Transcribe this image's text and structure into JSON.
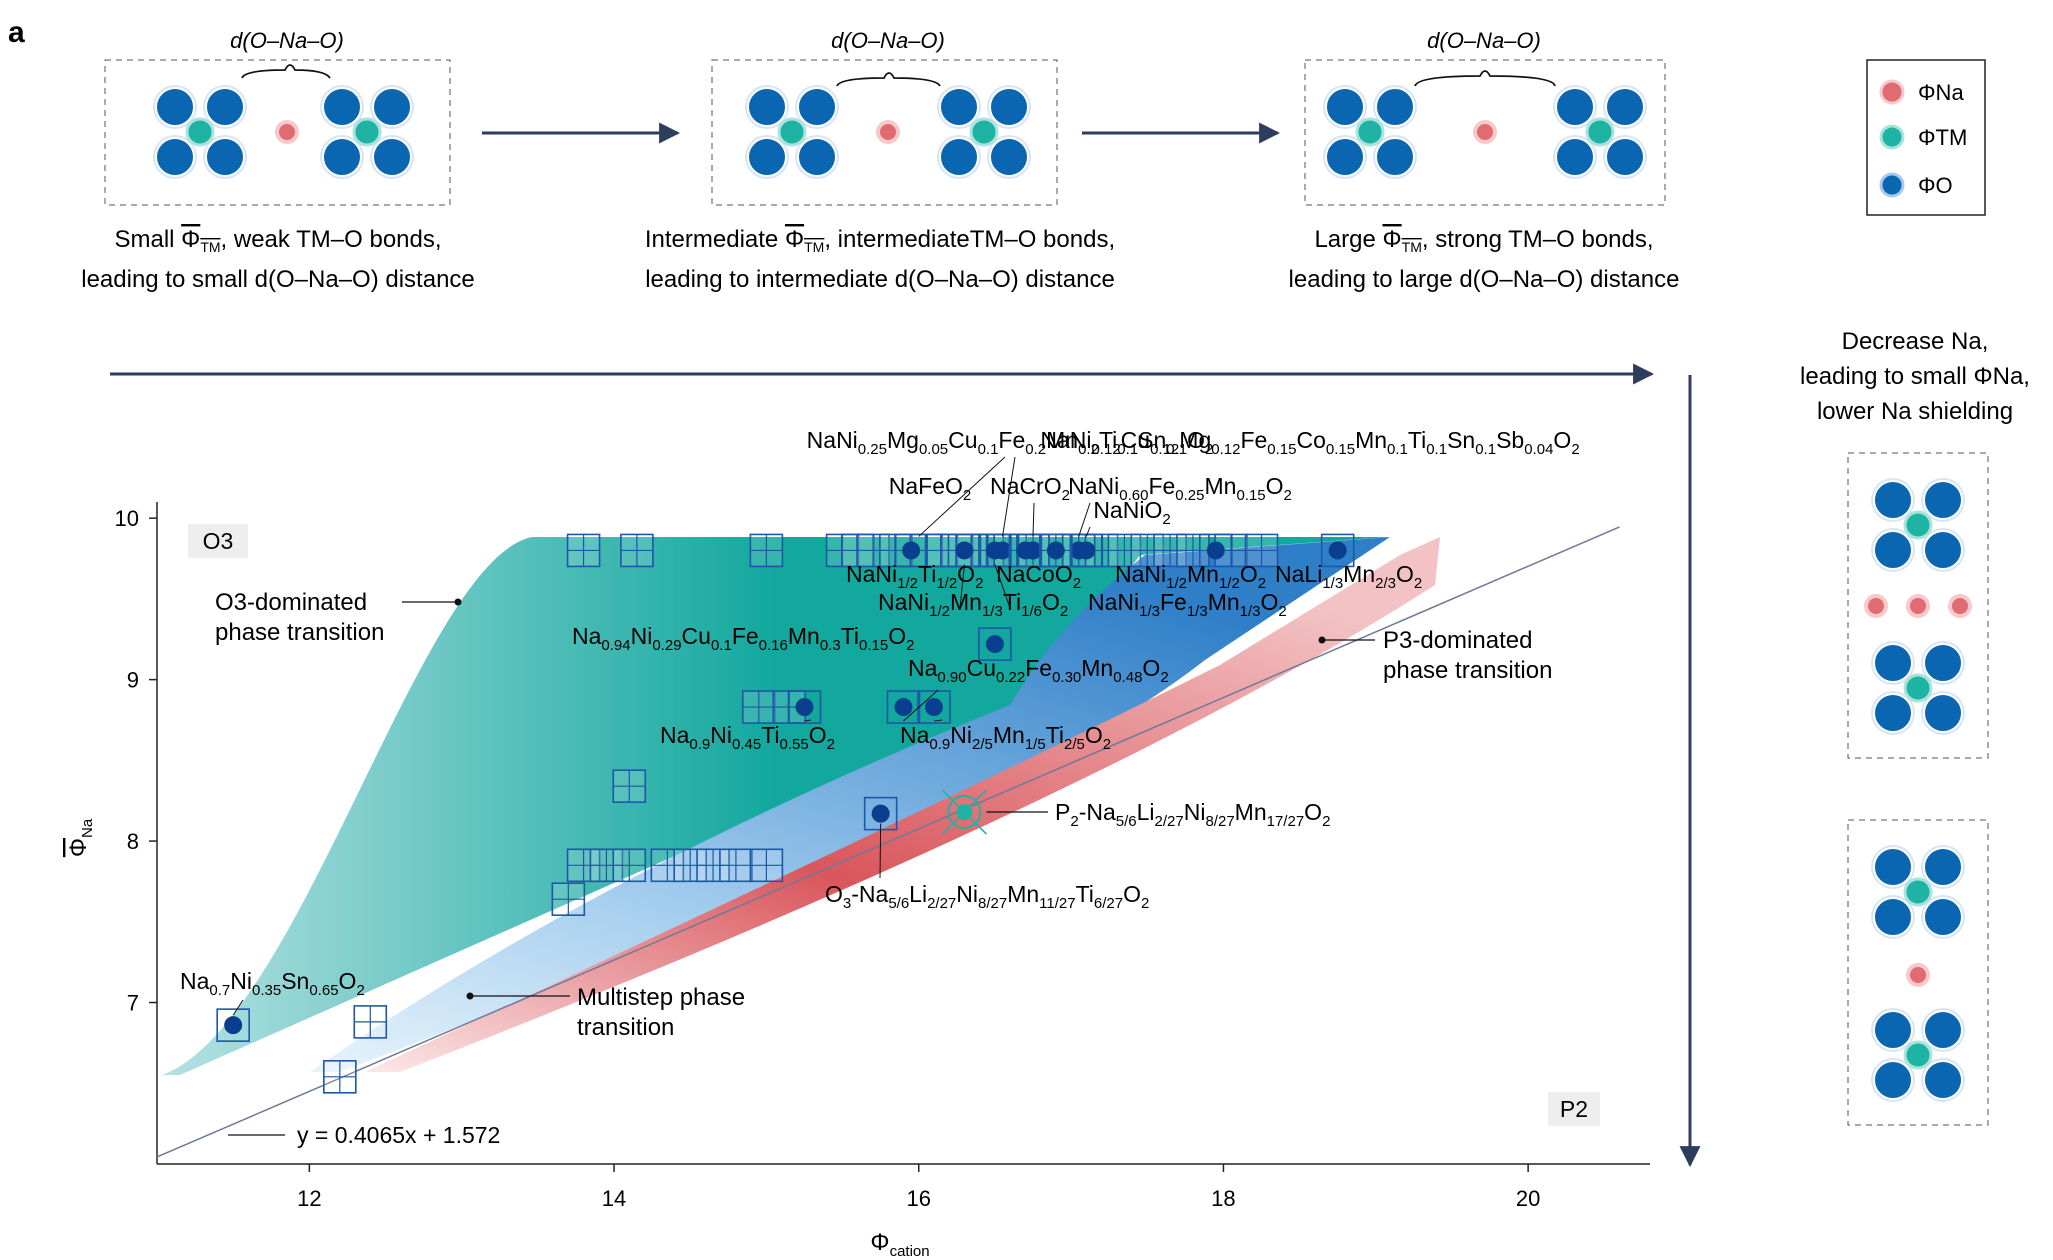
{
  "panel_label": "a",
  "top_schematics": [
    {
      "distance_label": "d(O–Na–O)",
      "caption_line1_pre": "Small ",
      "caption_line1_post": ", weak TM–O bonds,",
      "caption_line2": "leading to small d(O–Na–O) distance"
    },
    {
      "distance_label": "d(O–Na–O)",
      "caption_line1_pre": "Intermediate ",
      "caption_line1_post": ", intermediateTM–O bonds,",
      "caption_line2": "leading to intermediate d(O–Na–O) distance"
    },
    {
      "distance_label": "d(O–Na–O)",
      "caption_line1_pre": "Large ",
      "caption_line1_post": ", strong TM–O bonds,",
      "caption_line2": "leading to large d(O–Na–O) distance"
    }
  ],
  "legend": [
    {
      "label": "ΦNa",
      "color": "#e06b70"
    },
    {
      "label": "ΦTM",
      "color": "#1fb3a4"
    },
    {
      "label": "ΦO",
      "color": "#0a66b0"
    }
  ],
  "side_text": [
    "Decrease Na,",
    "leading to small ΦNa,",
    "lower Na shielding"
  ],
  "colors": {
    "o3_region": "#12a89e",
    "multistep_region": "#2f7fc8",
    "p3_region": "#d9565c",
    "marker": "#0a3f8f",
    "arrow": "#2c3d5e"
  },
  "chart_data": {
    "type": "scatter",
    "xlabel": "Φcation",
    "ylabel": "ΦNa",
    "xlim": [
      11.0,
      20.8
    ],
    "ylim": [
      6.0,
      10.1
    ],
    "xticks": [
      12,
      14,
      16,
      18,
      20
    ],
    "yticks": [
      7,
      8,
      9,
      10
    ],
    "phase_labels": [
      "O3",
      "P2"
    ],
    "regions": [
      {
        "name": "O3-dominated phase transition"
      },
      {
        "name": "Multistep phase transition"
      },
      {
        "name": "P3-dominated phase transition"
      }
    ],
    "fit_line": {
      "label": "y = 0.4065x + 1.572",
      "slope": 0.4065,
      "intercept": 1.572
    },
    "open_squares": [
      [
        13.8,
        9.8
      ],
      [
        14.15,
        9.8
      ],
      [
        15.0,
        9.8
      ],
      [
        15.5,
        9.8
      ],
      [
        15.6,
        9.8
      ],
      [
        15.7,
        9.8
      ],
      [
        15.85,
        9.8
      ],
      [
        16.05,
        9.8
      ],
      [
        16.15,
        9.8
      ],
      [
        16.25,
        9.8
      ],
      [
        16.35,
        9.8
      ],
      [
        16.45,
        9.8
      ],
      [
        16.6,
        9.8
      ],
      [
        16.75,
        9.8
      ],
      [
        16.9,
        9.8
      ],
      [
        17.05,
        9.8
      ],
      [
        17.2,
        9.8
      ],
      [
        17.35,
        9.8
      ],
      [
        17.5,
        9.8
      ],
      [
        17.65,
        9.8
      ],
      [
        17.8,
        9.8
      ],
      [
        18.05,
        9.8
      ],
      [
        18.25,
        9.8
      ],
      [
        14.95,
        8.83
      ],
      [
        15.15,
        8.83
      ],
      [
        14.1,
        8.34
      ],
      [
        13.8,
        7.85
      ],
      [
        13.95,
        7.85
      ],
      [
        14.1,
        7.85
      ],
      [
        14.35,
        7.85
      ],
      [
        14.5,
        7.85
      ],
      [
        14.65,
        7.85
      ],
      [
        14.8,
        7.85
      ],
      [
        15.0,
        7.85
      ],
      [
        13.7,
        7.64
      ],
      [
        12.4,
        6.88
      ],
      [
        12.2,
        6.54
      ]
    ],
    "filled_points": [
      {
        "label": "NaNi0.25Mg0.05Cu0.1Fe0.2Mn0.2Ti0.1Sn0.1O2",
        "x": 16.55,
        "y": 9.8
      },
      {
        "label": "NaNi0.12Cu0.12Mg0.12Fe0.15Co0.15Mn0.1Ti0.1Sn0.1Sb0.04O2",
        "x": 16.75,
        "y": 9.8
      },
      {
        "label": "NaFeO2",
        "x": 15.95,
        "y": 9.8
      },
      {
        "label": "NaCrO2",
        "x": 16.75,
        "y": 9.8
      },
      {
        "label": "NaNi0.60Fe0.25Mn0.15O2",
        "x": 17.05,
        "y": 9.8
      },
      {
        "label": "NaNiO2",
        "x": 17.1,
        "y": 9.8
      },
      {
        "label": "NaNi1/2Ti1/2O2",
        "x": 16.3,
        "y": 9.8
      },
      {
        "label": "NaCoO2",
        "x": 16.7,
        "y": 9.8
      },
      {
        "label": "NaNi1/2Mn1/2O2",
        "x": 17.95,
        "y": 9.8
      },
      {
        "label": "NaLi1/3Mn2/3O2",
        "x": 18.75,
        "y": 9.8
      },
      {
        "label": "NaNi1/2Mn1/3Ti1/6O2",
        "x": 16.5,
        "y": 9.8
      },
      {
        "label": "NaNi1/3Fe1/3Mn1/3O2",
        "x": 16.9,
        "y": 9.8
      },
      {
        "label": "Na0.94Ni0.29Cu0.1Fe0.16Mn0.3Ti0.15O2",
        "x": 16.5,
        "y": 9.22
      },
      {
        "label": "Na0.90Cu0.22Fe0.30Mn0.48O2",
        "x": 15.9,
        "y": 8.83
      },
      {
        "label": "Na0.9Ni0.45Ti0.55O2",
        "x": 15.25,
        "y": 8.83
      },
      {
        "label": "Na0.9Ni2/5Mn1/5Ti2/5O2",
        "x": 16.1,
        "y": 8.83
      },
      {
        "label": "O3-Na5/6Li2/27Ni8/27Mn11/27Ti6/27O2",
        "x": 15.75,
        "y": 8.17
      },
      {
        "label": "Na0.7Ni0.35Sn0.65O2",
        "x": 11.5,
        "y": 6.86
      }
    ],
    "special_point": {
      "label": "P2-Na5/6Li2/27Ni8/27Mn17/27O2",
      "x": 16.3,
      "y": 8.18
    }
  }
}
